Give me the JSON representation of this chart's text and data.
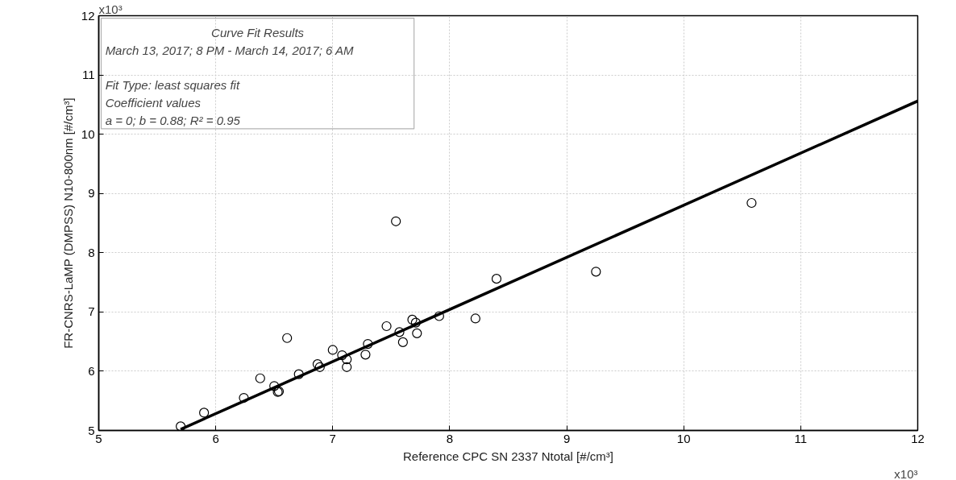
{
  "chart_data": {
    "type": "scatter",
    "xlabel": "Reference CPC SN 2337 Ntotal [#/cm³]",
    "ylabel": "FR-CNRS-LaMP (DMPSS) N10-800nm [#/cm³]",
    "annotations": [
      "Curve Fit Results",
      "March 13, 2017; 8 PM - March 14, 2017; 6 AM",
      "Fit Type: least squares fit",
      "Coefficient values",
      "a = 0; b = 0.88; R² = 0.95",
      "x10³",
      "x10³"
    ],
    "xlim": [
      5,
      12
    ],
    "ylim": [
      5,
      12
    ],
    "xticks": [
      5,
      6,
      7,
      8,
      9,
      10,
      11,
      12
    ],
    "yticks": [
      5,
      6,
      7,
      8,
      9,
      10,
      11,
      12
    ],
    "grid": true,
    "series": [
      {
        "marker": "circle",
        "color": "#000000",
        "x": [
          5.7,
          5.9,
          6.24,
          6.38,
          6.5,
          6.53,
          6.54,
          6.61,
          6.71,
          6.87,
          6.89,
          7.0,
          7.08,
          7.12,
          7.12,
          7.28,
          7.3,
          7.46,
          7.54,
          7.57,
          7.6,
          7.68,
          7.71,
          7.72,
          7.91,
          8.22,
          8.4,
          9.25,
          10.58
        ],
        "values": [
          5.07,
          5.3,
          5.55,
          5.88,
          5.75,
          5.65,
          5.66,
          6.56,
          5.95,
          6.12,
          6.07,
          6.36,
          6.27,
          6.2,
          6.07,
          6.28,
          6.46,
          6.76,
          8.53,
          6.66,
          6.49,
          6.87,
          6.82,
          6.64,
          6.93,
          6.89,
          7.56,
          7.68,
          8.84
        ]
      },
      {
        "type": "line",
        "color": "#000000",
        "x": [
          5.7,
          12
        ],
        "values": [
          5.02,
          10.56
        ]
      }
    ]
  }
}
